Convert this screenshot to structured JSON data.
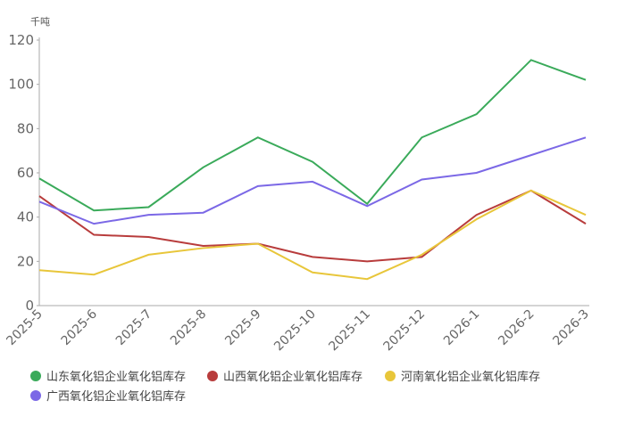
{
  "chart_data": {
    "type": "line",
    "unit_label": "千吨",
    "categories": [
      "2025-5",
      "2025-6",
      "2025-7",
      "2025-8",
      "2025-9",
      "2025-10",
      "2025-11",
      "2025-12",
      "2026-1",
      "2026-2",
      "2026-3"
    ],
    "series": [
      {
        "name": "山东氧化铝企业氧化铝库存",
        "color": "#3aaa5a",
        "values": [
          57.5,
          43,
          44.5,
          62.5,
          76,
          65,
          46,
          76,
          86.5,
          111,
          102
        ]
      },
      {
        "name": "山西氧化铝企业氧化铝库存",
        "color": "#b83c3c",
        "values": [
          49.5,
          32,
          31,
          27,
          28,
          22,
          20,
          22,
          41,
          52,
          37
        ]
      },
      {
        "name": "河南氧化铝企业氧化铝库存",
        "color": "#e8c63a",
        "values": [
          16,
          14,
          23,
          26,
          28,
          15,
          12,
          23,
          39,
          52,
          41
        ]
      },
      {
        "name": "广西氧化铝企业氧化铝库存",
        "color": "#7b68e6",
        "values": [
          47,
          37,
          41,
          42,
          54,
          56,
          45,
          57,
          60,
          68,
          76
        ]
      }
    ],
    "ylim": [
      0,
      120
    ],
    "yticks": [
      0,
      20,
      40,
      60,
      80,
      100,
      120
    ],
    "grid": false,
    "legend": "bottom"
  }
}
